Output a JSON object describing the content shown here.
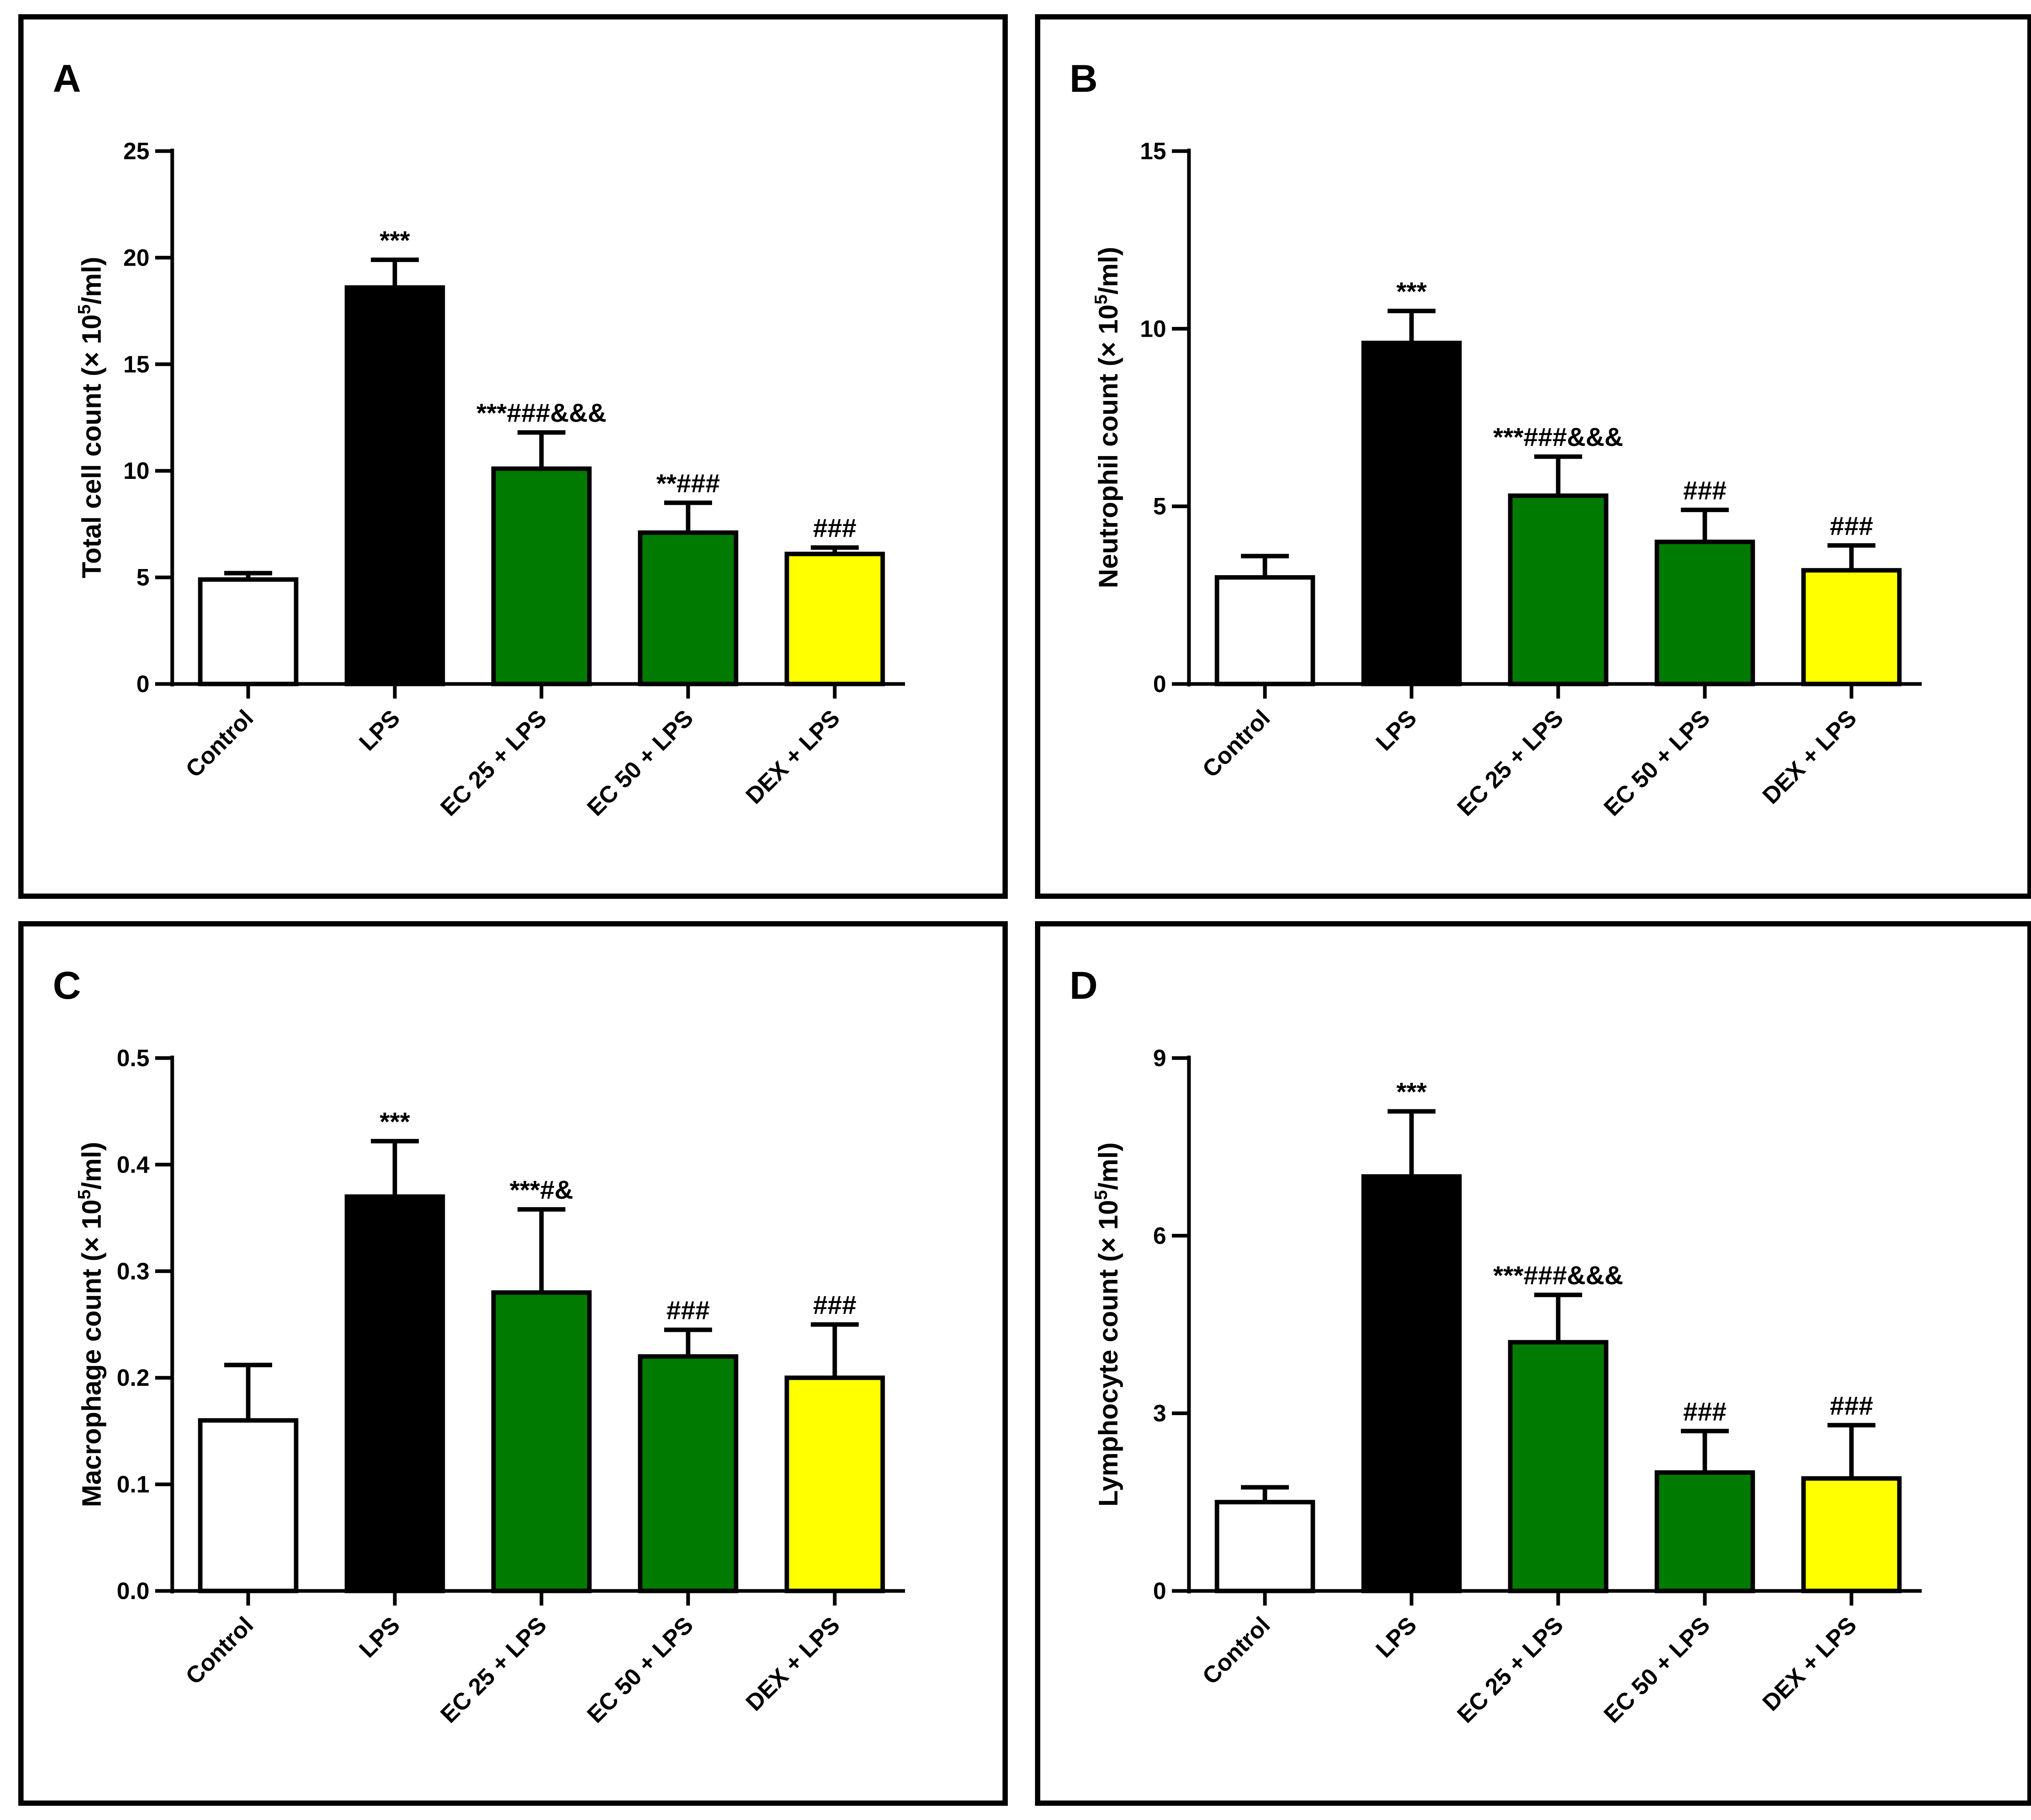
{
  "chart_data": [
    {
      "type": "bar",
      "panel": "A",
      "categories": [
        "Control",
        "LPS",
        "EC 25 + LPS",
        "EC 50 + LPS",
        "DEX + LPS"
      ],
      "ylabel_prefix": "Total cell count (× 10",
      "ylabel_sup": "5",
      "ylabel_suffix": "/ml)",
      "ylim": [
        0,
        25
      ],
      "yticks": [
        0,
        5,
        10,
        15,
        20,
        25
      ],
      "ytick_labels": [
        "0",
        "5",
        "10",
        "15",
        "20",
        "25"
      ],
      "values": [
        4.9,
        18.6,
        10.1,
        7.1,
        6.1
      ],
      "errors": [
        0.3,
        1.3,
        1.7,
        1.4,
        0.3
      ],
      "annotations": [
        "",
        "***",
        "***###&&&",
        "**###",
        "###"
      ],
      "colors": [
        "#ffffff",
        "#000000",
        "#007a00",
        "#007a00",
        "#ffff00"
      ],
      "grid": false,
      "legend": "none"
    },
    {
      "type": "bar",
      "panel": "B",
      "categories": [
        "Control",
        "LPS",
        "EC 25 + LPS",
        "EC 50 + LPS",
        "DEX + LPS"
      ],
      "ylabel_prefix": "Neutrophil count (× 10",
      "ylabel_sup": "5",
      "ylabel_suffix": "/ml)",
      "ylim": [
        0,
        15
      ],
      "yticks": [
        0,
        5,
        10,
        15
      ],
      "ytick_labels": [
        "0",
        "5",
        "10",
        "15"
      ],
      "values": [
        3.0,
        9.6,
        5.3,
        4.0,
        3.2
      ],
      "errors": [
        0.6,
        0.9,
        1.1,
        0.9,
        0.7
      ],
      "annotations": [
        "",
        "***",
        "***###&&&",
        "###",
        "###"
      ],
      "colors": [
        "#ffffff",
        "#000000",
        "#007a00",
        "#007a00",
        "#ffff00"
      ],
      "grid": false,
      "legend": "none"
    },
    {
      "type": "bar",
      "panel": "C",
      "categories": [
        "Control",
        "LPS",
        "EC 25 + LPS",
        "EC 50 + LPS",
        "DEX + LPS"
      ],
      "ylabel_prefix": "Macrophage count (× 10",
      "ylabel_sup": "5",
      "ylabel_suffix": "/ml)",
      "ylim": [
        0,
        0.5
      ],
      "yticks": [
        0,
        0.1,
        0.2,
        0.3,
        0.4,
        0.5
      ],
      "ytick_labels": [
        "0.0",
        "0.1",
        "0.2",
        "0.3",
        "0.4",
        "0.5"
      ],
      "values": [
        0.16,
        0.37,
        0.28,
        0.22,
        0.2
      ],
      "errors": [
        0.052,
        0.052,
        0.078,
        0.025,
        0.05
      ],
      "annotations": [
        "",
        "***",
        "***#&",
        "###",
        "###"
      ],
      "colors": [
        "#ffffff",
        "#000000",
        "#007a00",
        "#007a00",
        "#ffff00"
      ],
      "grid": false,
      "legend": "none"
    },
    {
      "type": "bar",
      "panel": "D",
      "categories": [
        "Control",
        "LPS",
        "EC 25 + LPS",
        "EC 50 + LPS",
        "DEX + LPS"
      ],
      "ylabel_prefix": "Lymphocyte count (× 10",
      "ylabel_sup": "5",
      "ylabel_suffix": "/ml)",
      "ylim": [
        0,
        9
      ],
      "yticks": [
        0,
        3,
        6,
        9
      ],
      "ytick_labels": [
        "0",
        "3",
        "6",
        "9"
      ],
      "values": [
        1.5,
        7.0,
        4.2,
        2.0,
        1.9
      ],
      "errors": [
        0.25,
        1.1,
        0.8,
        0.7,
        0.9
      ],
      "annotations": [
        "",
        "***",
        "***###&&&",
        "###",
        "###"
      ],
      "colors": [
        "#ffffff",
        "#000000",
        "#007a00",
        "#007a00",
        "#ffff00"
      ],
      "grid": false,
      "legend": "none"
    }
  ]
}
